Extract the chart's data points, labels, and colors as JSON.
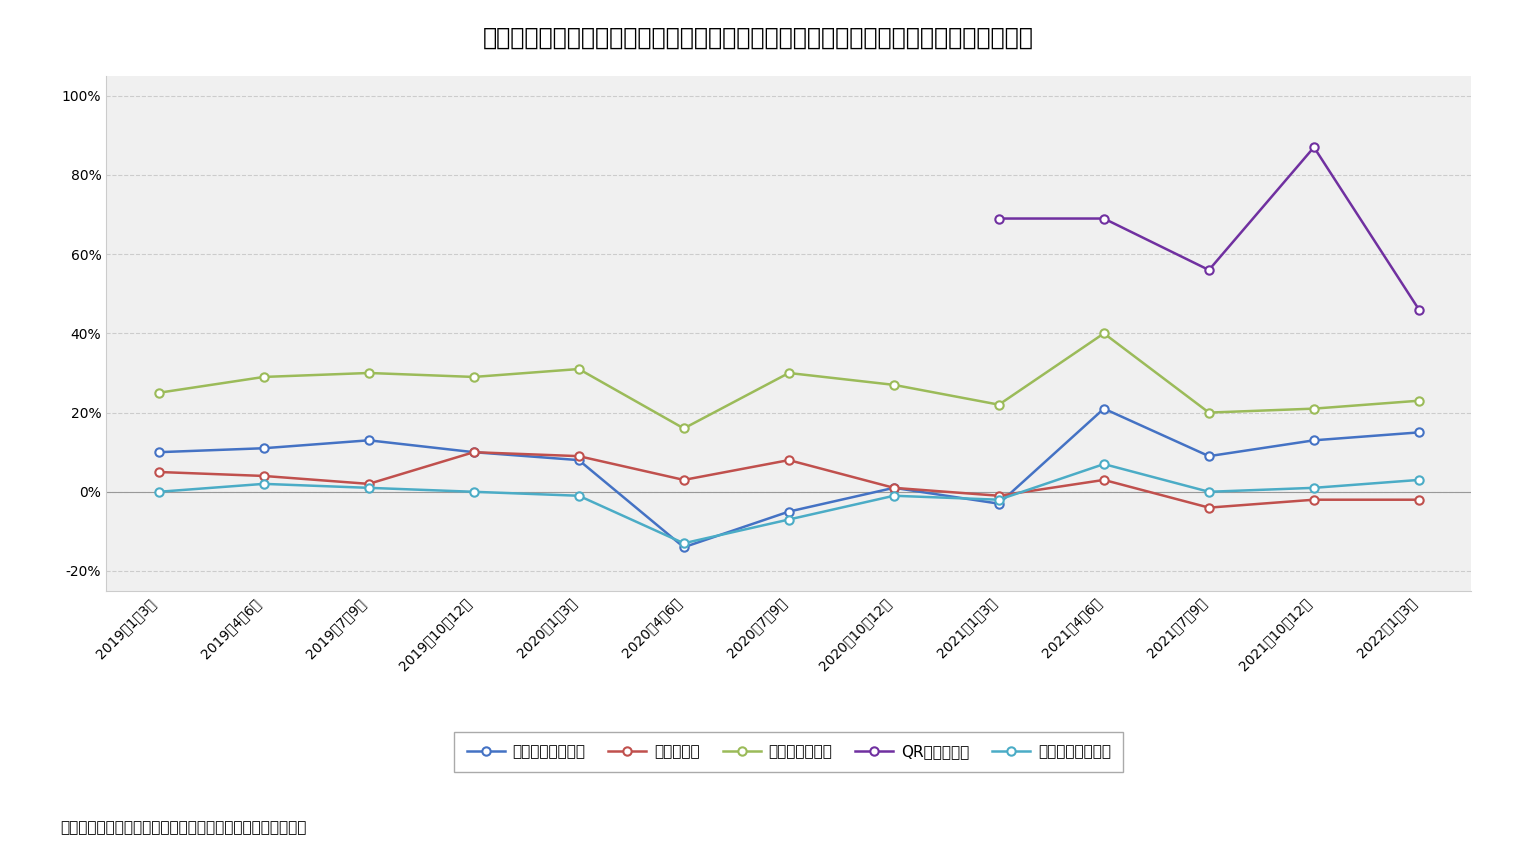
{
  "title": "図表６：各キャッシュレス決済手段と民間最終消費支出の伸び率の推移（前年同期比）",
  "footnote": "（資料：内閣府、経済産業省、日本銀行のデータから作成）",
  "categories": [
    "2019年1～3月",
    "2019年4～6月",
    "2019年7～9月",
    "2019年10～12月",
    "2020年1～3月",
    "2020年4～6月",
    "2020年7～9月",
    "2020年10～12月",
    "2021年1～3月",
    "2021年4～6月",
    "2021年7～9月",
    "2021年10～12月",
    "2022年1～3月"
  ],
  "series": [
    {
      "name": "クレジットカード",
      "values": [
        10,
        11,
        13,
        10,
        8,
        -14,
        -5,
        1,
        -3,
        21,
        9,
        13,
        15
      ],
      "color": "#4472c4"
    },
    {
      "name": "電子マネー",
      "values": [
        5,
        4,
        2,
        10,
        9,
        3,
        8,
        1,
        -1,
        3,
        -4,
        -2,
        -2
      ],
      "color": "#c0504d"
    },
    {
      "name": "デビットカード",
      "values": [
        25,
        29,
        30,
        29,
        31,
        16,
        30,
        27,
        22,
        40,
        20,
        21,
        23
      ],
      "color": "#9bbb59"
    },
    {
      "name": "QRコード決済",
      "values": [
        null,
        null,
        null,
        null,
        null,
        null,
        null,
        null,
        69,
        69,
        56,
        87,
        46
      ],
      "color": "#7030a0"
    },
    {
      "name": "民間最終消費支出",
      "values": [
        0,
        2,
        1,
        0,
        -1,
        -13,
        -7,
        -1,
        -2,
        7,
        0,
        1,
        3
      ],
      "color": "#4bacc6"
    }
  ],
  "ylim": [
    -25,
    105
  ],
  "yticks": [
    -20,
    0,
    20,
    40,
    60,
    80,
    100
  ],
  "background_color": "#ffffff",
  "plot_bg_color": "#f0f0f0",
  "grid_color": "#cccccc",
  "title_fontsize": 17,
  "axis_label_fontsize": 10,
  "legend_fontsize": 11,
  "footnote_fontsize": 11
}
